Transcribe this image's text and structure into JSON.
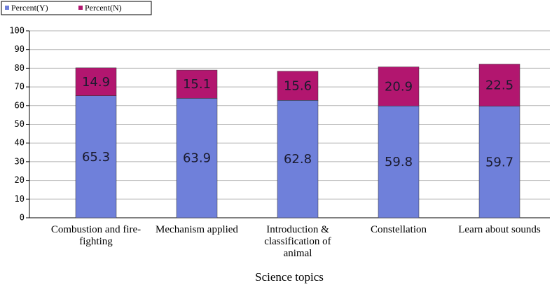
{
  "chart_data": {
    "type": "bar",
    "stacked": true,
    "x_label": "Science topics",
    "categories": [
      "Combustion and fire-fighting",
      "Mechanism applied",
      "Introduction & classification of animal",
      "Constellation",
      "Learn about sounds"
    ],
    "series": [
      {
        "name": "Percent(Y)",
        "color": "#6f80da",
        "values": [
          65.3,
          63.9,
          62.8,
          59.8,
          59.7
        ]
      },
      {
        "name": "Percent(N)",
        "color": "#b2166f",
        "values": [
          14.9,
          15.1,
          15.6,
          20.9,
          22.5
        ]
      }
    ],
    "ylim": [
      0,
      100
    ],
    "yticks": [
      0,
      10,
      20,
      30,
      40,
      50,
      60,
      70,
      80,
      90,
      100
    ],
    "grid": true,
    "legend": "top-left"
  }
}
